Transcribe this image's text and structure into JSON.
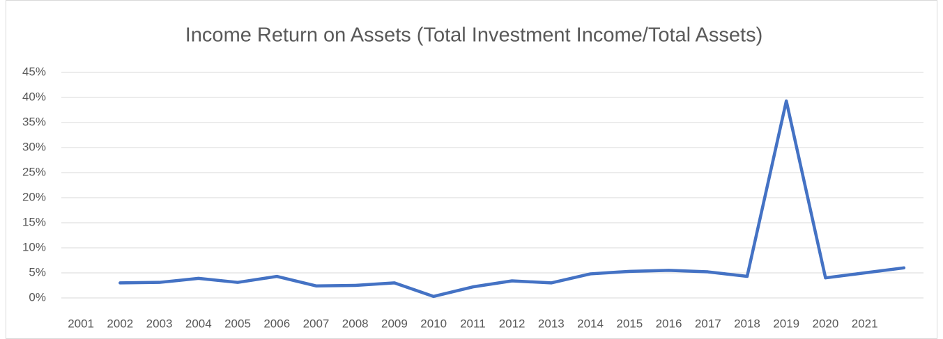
{
  "chart_data": {
    "type": "line",
    "title": "Income Return on Assets (Total Investment Income/Total Assets)",
    "categories": [
      "2001",
      "2002",
      "2003",
      "2004",
      "2005",
      "2006",
      "2007",
      "2008",
      "2009",
      "2010",
      "2011",
      "2012",
      "2013",
      "2014",
      "2015",
      "2016",
      "2017",
      "2018",
      "2019",
      "2020",
      "2021",
      null
    ],
    "series": [
      {
        "name": "Income Return on Assets",
        "color": "#4472c4",
        "values": [
          null,
          3.0,
          3.1,
          3.9,
          3.1,
          4.3,
          2.4,
          2.5,
          3.0,
          0.3,
          2.2,
          3.4,
          3.0,
          4.8,
          5.3,
          5.5,
          5.2,
          4.3,
          39.3,
          4.0,
          5.0,
          6.0
        ]
      }
    ],
    "ylim": [
      0,
      45
    ],
    "yticks": [
      {
        "value": 0,
        "label": "0%"
      },
      {
        "value": 5,
        "label": "5%"
      },
      {
        "value": 10,
        "label": "10%"
      },
      {
        "value": 15,
        "label": "15%"
      },
      {
        "value": 20,
        "label": "20%"
      },
      {
        "value": 25,
        "label": "25%"
      },
      {
        "value": 30,
        "label": "30%"
      },
      {
        "value": 35,
        "label": "35%"
      },
      {
        "value": 40,
        "label": "40%"
      },
      {
        "value": 45,
        "label": "45%"
      }
    ],
    "grid": true
  }
}
